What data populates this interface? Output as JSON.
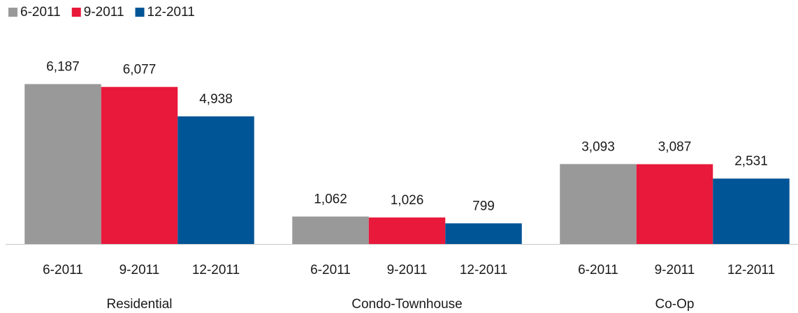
{
  "chart_data": {
    "type": "bar",
    "categories": [
      "Residential",
      "Condo-Townhouse",
      "Co-Op"
    ],
    "series": [
      {
        "name": "6-2011",
        "color": "#999999",
        "values": [
          6187,
          1062,
          3093
        ],
        "value_labels": [
          "6,187",
          "1,062",
          "3,093"
        ]
      },
      {
        "name": "9-2011",
        "color": "#e8193a",
        "values": [
          6077,
          1026,
          3087
        ],
        "value_labels": [
          "6,077",
          "1,026",
          "3,087"
        ]
      },
      {
        "name": "12-2011",
        "color": "#005596",
        "values": [
          4938,
          799,
          2531
        ],
        "value_labels": [
          "4,938",
          "799",
          "2,531"
        ]
      }
    ],
    "ylim": [
      0,
      6500
    ],
    "legend": "top-left"
  }
}
